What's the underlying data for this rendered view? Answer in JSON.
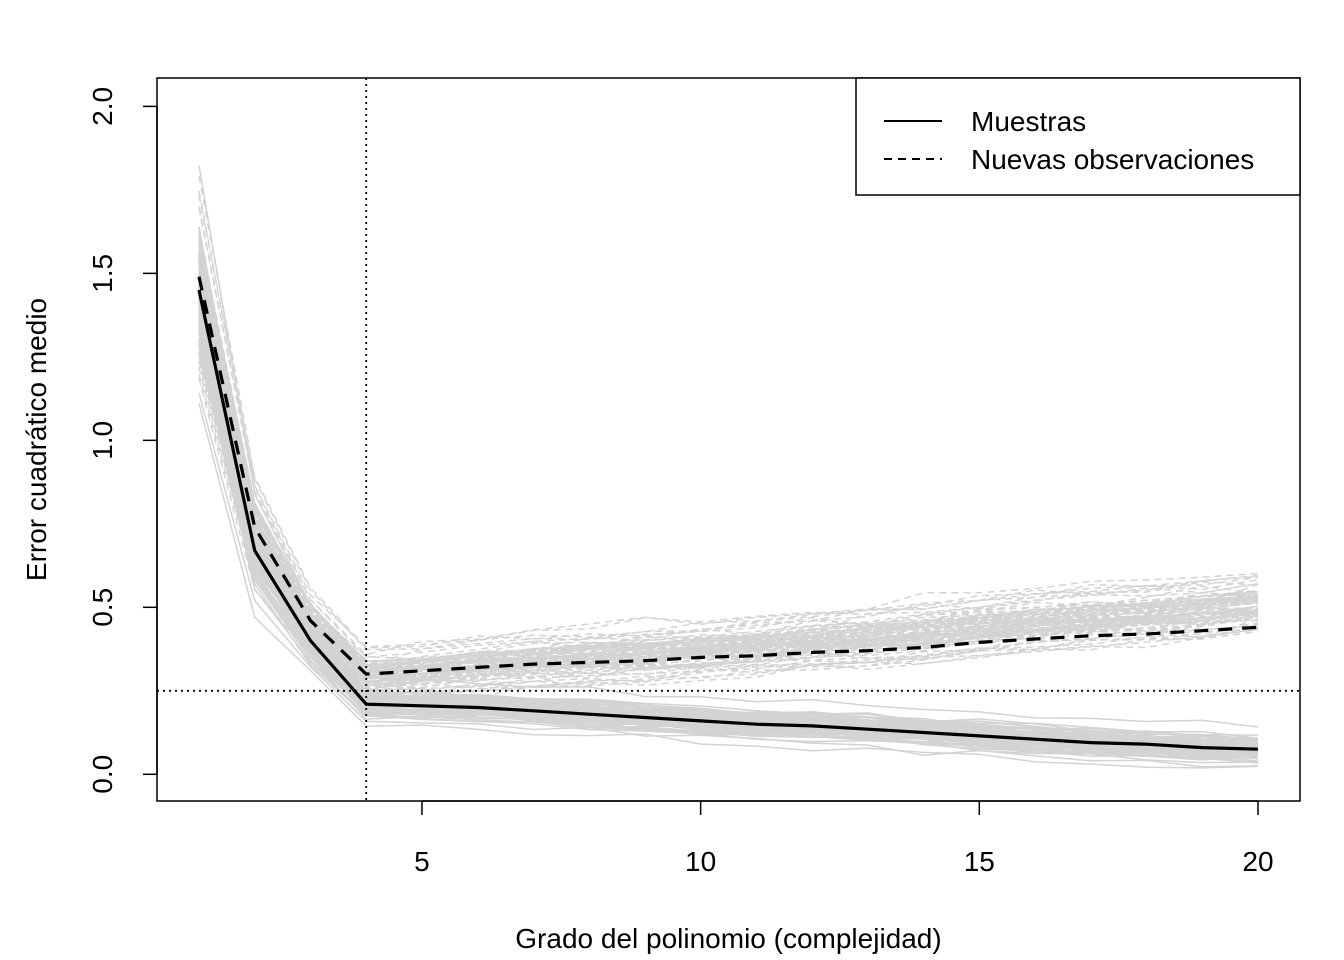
{
  "chart_data": {
    "type": "line",
    "xlabel": "Grado del polinomio (complejidad)",
    "ylabel": "Error cuadrático medio",
    "xlim": [
      1,
      20
    ],
    "ylim": [
      0,
      2
    ],
    "x_ticks": [
      5,
      10,
      15,
      20
    ],
    "y_ticks": [
      0.0,
      0.5,
      1.0,
      1.5,
      2.0
    ],
    "x_tick_labels": [
      "5",
      "10",
      "15",
      "20"
    ],
    "y_tick_labels": [
      "0.0",
      "0.5",
      "1.0",
      "1.5",
      "2.0"
    ],
    "x": [
      1,
      2,
      3,
      4,
      5,
      6,
      7,
      8,
      9,
      10,
      11,
      12,
      13,
      14,
      15,
      16,
      17,
      18,
      19,
      20
    ],
    "series": [
      {
        "name": "Muestras",
        "line_style": "solid",
        "color": "#000000",
        "values": [
          1.45,
          0.67,
          0.4,
          0.21,
          0.205,
          0.2,
          0.19,
          0.18,
          0.17,
          0.16,
          0.15,
          0.145,
          0.135,
          0.125,
          0.115,
          0.105,
          0.095,
          0.09,
          0.08,
          0.075
        ]
      },
      {
        "name": "Nuevas observaciones",
        "line_style": "dashed",
        "color": "#000000",
        "values": [
          1.49,
          0.74,
          0.46,
          0.3,
          0.31,
          0.32,
          0.33,
          0.335,
          0.34,
          0.35,
          0.355,
          0.365,
          0.37,
          0.38,
          0.395,
          0.405,
          0.415,
          0.42,
          0.43,
          0.44
        ]
      }
    ],
    "background_curves": {
      "color": "#d3d3d3",
      "count_per_style": 90,
      "description": "Simulated individual replicate curves (solid for sample error, dashed for new-observation error)"
    },
    "reference_lines": [
      {
        "axis": "x",
        "value": 4,
        "style": "dotted"
      },
      {
        "axis": "y",
        "value": 0.25,
        "style": "dotted"
      }
    ],
    "legend": {
      "position": "top-right",
      "entries": [
        {
          "label": "Muestras",
          "line_style": "solid"
        },
        {
          "label": "Nuevas observaciones",
          "line_style": "dashed"
        }
      ]
    },
    "grid": false
  }
}
